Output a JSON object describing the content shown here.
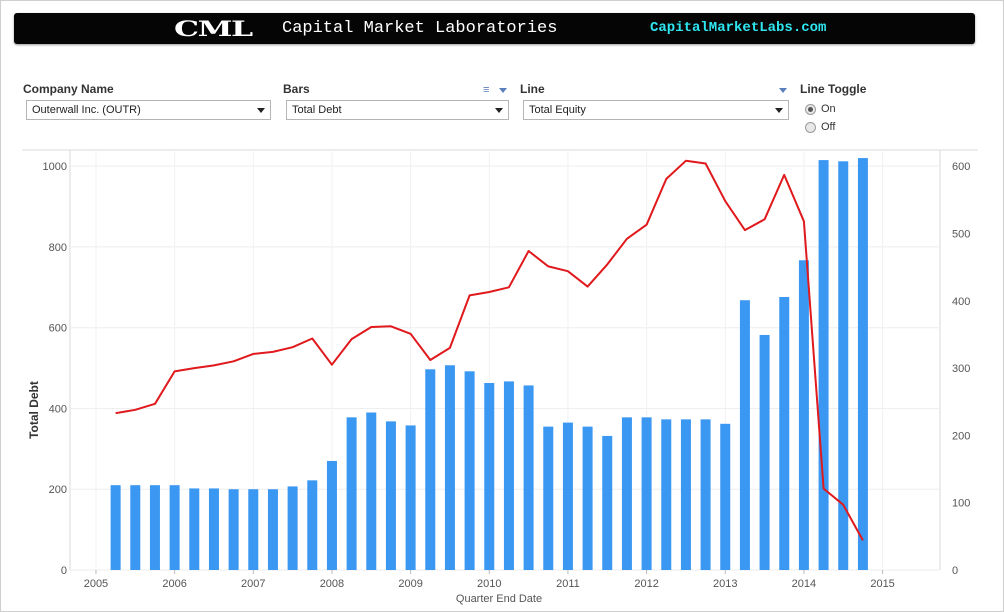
{
  "header": {
    "logo": "CML",
    "name": "Capital Market Laboratories",
    "url": "CapitalMarketLabs.com"
  },
  "controls": {
    "company": {
      "label": "Company Name",
      "value": "Outerwall Inc. (OUTR)"
    },
    "bars": {
      "label": "Bars",
      "value": "Total Debt"
    },
    "line": {
      "label": "Line",
      "value": "Total Equity"
    },
    "toggle": {
      "label": "Line Toggle",
      "options": [
        "On",
        "Off"
      ],
      "selected": "On"
    }
  },
  "icons": {
    "bars_menu": "list-menu-icon",
    "bars_menu_arrow": "chevron-down-icon",
    "line_menu_arrow": "chevron-down-icon"
  },
  "chart_data": {
    "type": "bar+line",
    "xlabel": "Quarter End Date",
    "ylabel": "Total Debt",
    "x_ticks": [
      "2005",
      "2006",
      "2007",
      "2008",
      "2009",
      "2010",
      "2011",
      "2012",
      "2013",
      "2014",
      "2015"
    ],
    "y_left_ticks": [
      0,
      200,
      400,
      600,
      800,
      1000
    ],
    "y_right_ticks": [
      0,
      100,
      200,
      300,
      400,
      500,
      600
    ],
    "y_left_lim": [
      0,
      1040
    ],
    "y_right_lim": [
      0,
      624
    ],
    "x_lim": [
      2004.67,
      2015.73
    ],
    "grid": true,
    "bar_color": "#3a97f2",
    "line_color": "#e0191c",
    "series": [
      {
        "axis": "left",
        "mark": "bar",
        "x": [
          2005.25,
          2005.5,
          2005.75,
          2006.0,
          2006.25,
          2006.5,
          2006.75,
          2007.0,
          2007.25,
          2007.5,
          2007.75,
          2008.0,
          2008.25,
          2008.5,
          2008.75,
          2009.0,
          2009.25,
          2009.5,
          2009.75,
          2010.0,
          2010.25,
          2010.5,
          2010.75,
          2011.0,
          2011.25,
          2011.5,
          2011.75,
          2012.0,
          2012.25,
          2012.5,
          2012.75,
          2013.0,
          2013.25,
          2013.5,
          2013.75,
          2014.0,
          2014.25,
          2014.5,
          2014.75
        ],
        "values": [
          210,
          210,
          210,
          210,
          202,
          202,
          200,
          200,
          200,
          207,
          222,
          270,
          378,
          390,
          368,
          358,
          497,
          507,
          492,
          463,
          467,
          457,
          355,
          365,
          355,
          332,
          378,
          378,
          373,
          373,
          373,
          362,
          668,
          582,
          676,
          767,
          1015,
          1012,
          1020
        ]
      },
      {
        "axis": "right",
        "mark": "line",
        "x": [
          2005.25,
          2005.5,
          2005.75,
          2006.0,
          2006.25,
          2006.5,
          2006.75,
          2007.0,
          2007.25,
          2007.5,
          2007.75,
          2008.0,
          2008.25,
          2008.5,
          2008.75,
          2009.0,
          2009.25,
          2009.5,
          2009.75,
          2010.0,
          2010.25,
          2010.5,
          2010.75,
          2011.0,
          2011.25,
          2011.5,
          2011.75,
          2012.0,
          2012.25,
          2012.5,
          2012.75,
          2013.0,
          2013.25,
          2013.5,
          2013.75,
          2014.0,
          2014.25,
          2014.5,
          2014.75
        ],
        "values": [
          233,
          238,
          247,
          295,
          300,
          304,
          310,
          321,
          324,
          331,
          344,
          305,
          343,
          361,
          362,
          351,
          312,
          330,
          408,
          413,
          420,
          474,
          451,
          444,
          421,
          454,
          492,
          513,
          581,
          608,
          604,
          548,
          505,
          521,
          587,
          518,
          121,
          97,
          44
        ]
      }
    ]
  }
}
